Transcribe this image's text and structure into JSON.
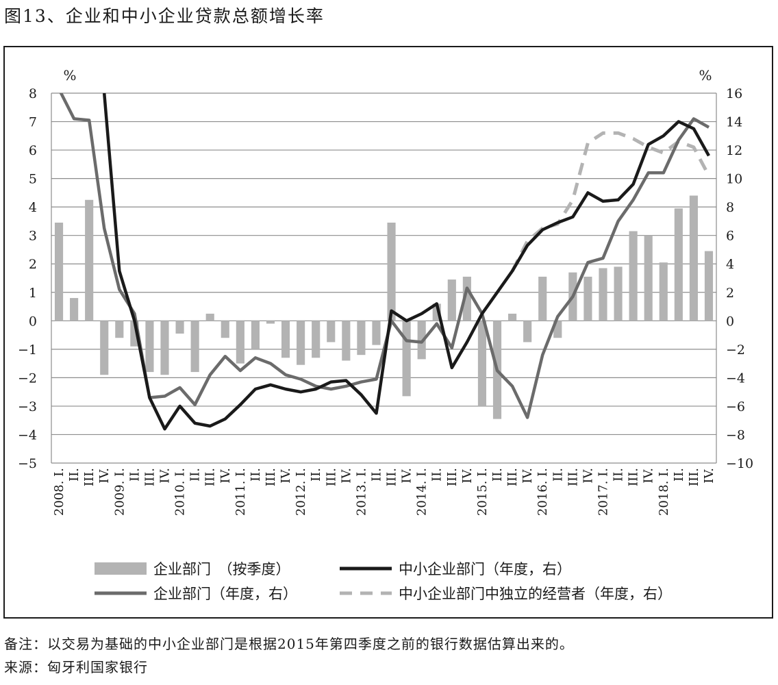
{
  "figure": {
    "title": "图13、企业和中小企业贷款总额增长率",
    "note": "备注：以交易为基础的中小企业部门是根据2015年第四季度之前的银行数据估算出来的。",
    "source": "来源：匈牙利国家银行"
  },
  "chart_data": {
    "type": "bar+line",
    "left_axis": {
      "unit_label": "%",
      "ylim": [
        -5,
        8
      ],
      "ticks": [
        "8",
        "7",
        "6",
        "5",
        "4",
        "3",
        "2",
        "1",
        "0",
        "−1",
        "−2",
        "−3",
        "−4",
        "−5"
      ]
    },
    "right_axis": {
      "unit_label": "%",
      "ylim": [
        -10,
        16
      ],
      "ticks": [
        "16",
        "14",
        "12",
        "10",
        "8",
        "6",
        "4",
        "2",
        "0",
        "−2",
        "−4",
        "−6",
        "−8",
        "−10"
      ]
    },
    "categories": [
      "2008. I.",
      "II.",
      "III.",
      "IV.",
      "2009. I.",
      "II.",
      "III.",
      "IV.",
      "2010. I.",
      "II.",
      "III.",
      "IV.",
      "2011. I.",
      "II.",
      "III.",
      "IV.",
      "2012. I.",
      "II.",
      "III.",
      "IV.",
      "2013. I.",
      "II.",
      "III.",
      "IV.",
      "2014. I.",
      "II.",
      "III.",
      "IV.",
      "2015. I.",
      "II.",
      "III.",
      "IV.",
      "2016. I.",
      "II.",
      "III.",
      "IV.",
      "2017. I.",
      "II.",
      "III.",
      "IV.",
      "2018. I.",
      "II.",
      "III.",
      "IV."
    ],
    "grid": true,
    "series": [
      {
        "name": "企业部门　（按季度）",
        "type": "bar",
        "axis": "left",
        "color": "#b3b3b3",
        "values": [
          3.45,
          0.8,
          4.25,
          -1.9,
          -0.6,
          -0.9,
          -1.8,
          -1.9,
          -0.45,
          -1.8,
          0.25,
          -0.6,
          -1.5,
          -1.0,
          -0.1,
          -1.3,
          -1.55,
          -1.3,
          -0.75,
          -1.4,
          -1.2,
          -0.85,
          3.45,
          -2.65,
          -1.35,
          0.6,
          1.45,
          1.55,
          -3.0,
          -3.45,
          0.25,
          -0.75,
          1.55,
          -0.6,
          1.7,
          1.55,
          1.85,
          1.9,
          3.15,
          3.0,
          2.05,
          3.95,
          4.4,
          2.45
        ]
      },
      {
        "name": "企业部门（年度，右）",
        "type": "line",
        "axis": "right",
        "color": "#6b6b6b",
        "dash": "solid",
        "values": [
          16.3,
          14.2,
          14.1,
          6.5,
          2.2,
          0.5,
          -5.4,
          -5.3,
          -4.7,
          -5.9,
          -3.8,
          -2.5,
          -3.5,
          -2.6,
          -3.0,
          -3.8,
          -4.1,
          -4.6,
          -4.8,
          -4.6,
          -4.3,
          -4.1,
          0.0,
          -1.4,
          -1.5,
          -0.2,
          -1.9,
          2.3,
          0.5,
          -3.5,
          -4.6,
          -6.8,
          -2.4,
          0.3,
          1.7,
          4.1,
          4.4,
          7.0,
          8.5,
          10.4,
          10.4,
          12.7,
          14.2,
          13.6
        ]
      },
      {
        "name": "中小企业部门（年度，右）",
        "type": "line",
        "axis": "right",
        "color": "#1a1a1a",
        "dash": "solid",
        "values": [
          null,
          null,
          null,
          16.0,
          3.5,
          0.0,
          -5.4,
          -7.6,
          -6.0,
          -7.2,
          -7.4,
          -6.9,
          -5.9,
          -4.8,
          -4.5,
          -4.8,
          -5.0,
          -4.8,
          -4.3,
          -4.2,
          -5.2,
          -6.5,
          0.7,
          0.0,
          0.5,
          1.2,
          -3.3,
          -1.5,
          0.5,
          2.0,
          3.5,
          5.3,
          6.4,
          6.9,
          7.3,
          9.0,
          8.4,
          8.5,
          9.6,
          12.4,
          13.0,
          14.0,
          13.5,
          11.6
        ]
      },
      {
        "name": "中小企业部门中独立的经营者（年度，右）",
        "type": "line",
        "axis": "right",
        "color": "#b3b3b3",
        "dash": "dashed",
        "values": [
          null,
          null,
          null,
          null,
          null,
          null,
          null,
          null,
          null,
          null,
          null,
          null,
          null,
          null,
          null,
          null,
          null,
          null,
          null,
          null,
          null,
          null,
          null,
          null,
          null,
          null,
          null,
          null,
          null,
          null,
          3.5,
          5.6,
          6.5,
          6.8,
          8.5,
          12.5,
          13.2,
          13.2,
          12.8,
          12.2,
          11.8,
          12.6,
          12.2,
          10.2
        ]
      }
    ],
    "legend": {
      "placement": "bottom",
      "columns": 2
    }
  }
}
